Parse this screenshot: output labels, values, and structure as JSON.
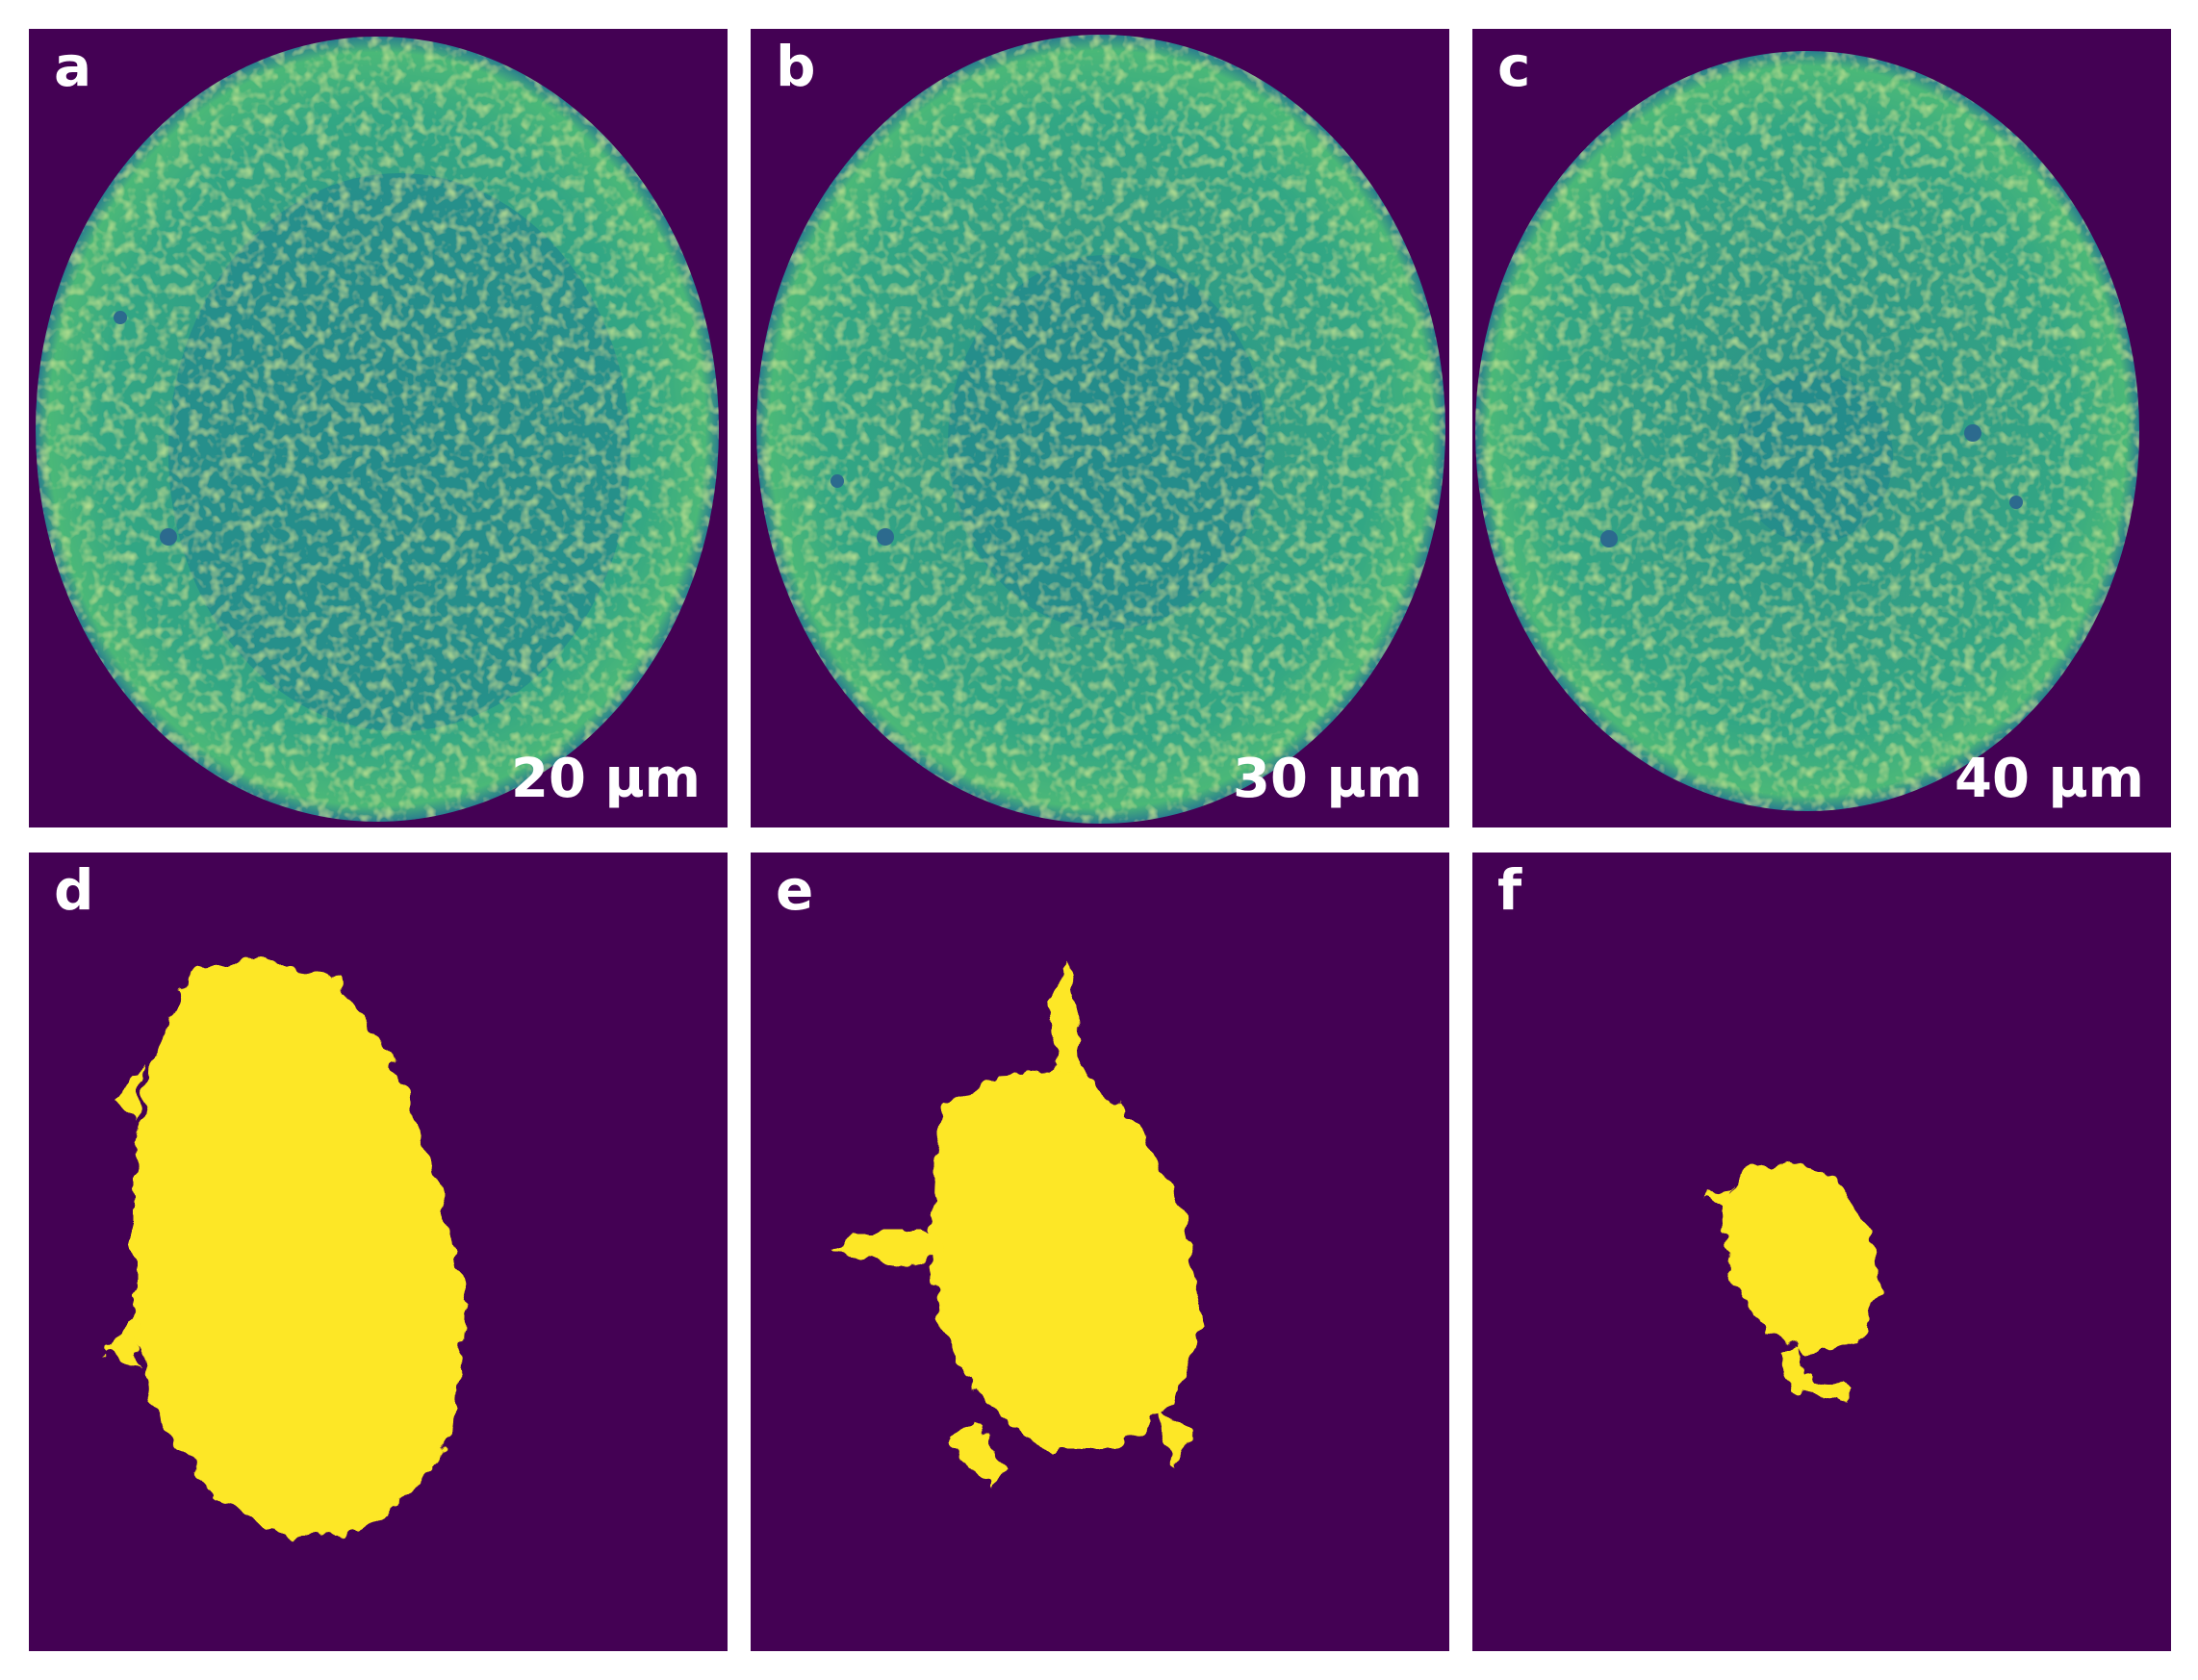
{
  "figure": {
    "panels_top": [
      {
        "label": "a",
        "scale_text": "20 µm"
      },
      {
        "label": "b",
        "scale_text": "30 µm"
      },
      {
        "label": "c",
        "scale_text": "40 µm"
      }
    ],
    "panels_bottom": [
      {
        "label": "d"
      },
      {
        "label": "e"
      },
      {
        "label": "f"
      }
    ]
  },
  "colors": {
    "background": "#440154",
    "disc_outer": "#2fa882",
    "disc_inner": "#238a8d",
    "edge": "#2a7e8e",
    "bright": "#8fd24a",
    "mask": "#fde725"
  }
}
